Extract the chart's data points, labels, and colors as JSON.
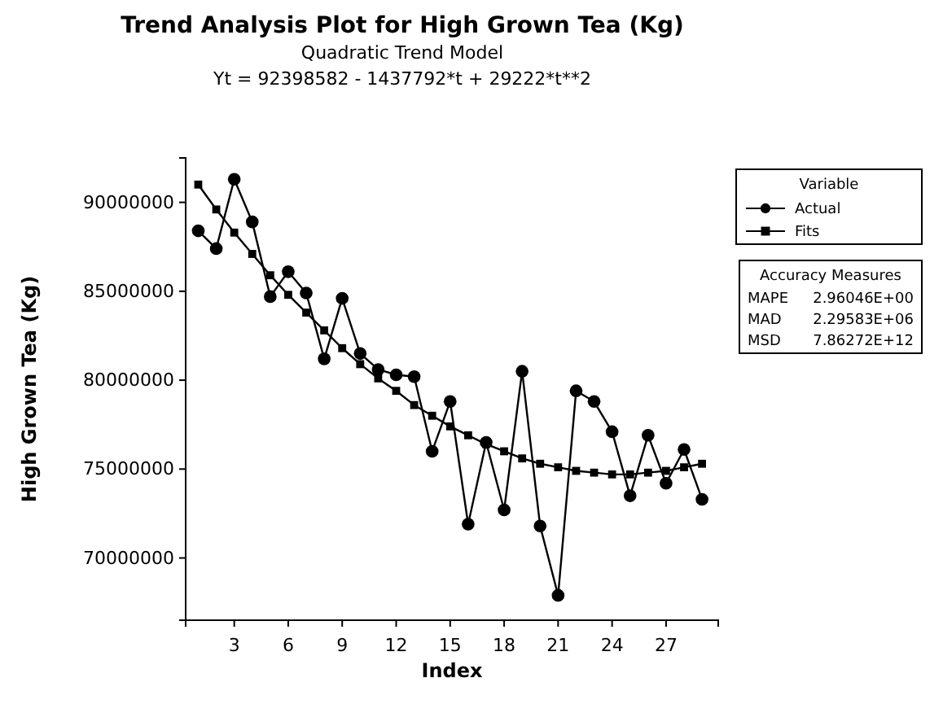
{
  "chart_data": {
    "type": "line",
    "title": "Trend Analysis Plot for High Grown Tea (Kg)",
    "subtitle": "Quadratic Trend Model",
    "xlabel": "Index",
    "ylabel": "High Grown Tea (Kg)",
    "legend_title": "Variable",
    "legend": "right",
    "annotations": [
      "Yt = 92398582 - 1437792*t + 29222*t**2",
      "Accuracy Measures",
      "MAPE",
      "2.96046E+00",
      "MAD",
      "2.29583E+06",
      "MSD",
      "7.86272E+12"
    ],
    "x": [
      1,
      2,
      3,
      4,
      5,
      6,
      7,
      8,
      9,
      10,
      11,
      12,
      13,
      14,
      15,
      16,
      17,
      18,
      19,
      20,
      21,
      22,
      23,
      24,
      25,
      26,
      27,
      28,
      29
    ],
    "xlim": [
      0.3,
      29.9
    ],
    "xticks": [
      3,
      6,
      9,
      12,
      15,
      18,
      21,
      24,
      27
    ],
    "ylim": [
      66500000,
      92500000
    ],
    "yticks": [
      70000000,
      75000000,
      80000000,
      85000000,
      90000000
    ],
    "series": [
      {
        "name": "Actual",
        "color": "#000000",
        "marker": "circle",
        "values": [
          88400000,
          87400000,
          91300000,
          88900000,
          84700000,
          86100000,
          84900000,
          81200000,
          84600000,
          81500000,
          80600000,
          80300000,
          80200000,
          76000000,
          78800000,
          71900000,
          76500000,
          72700000,
          80500000,
          71800000,
          67900000,
          79400000,
          78800000,
          77100000,
          73500000,
          76900000,
          74200000,
          76100000,
          73300000
        ]
      },
      {
        "name": "Fits",
        "color": "#000000",
        "marker": "square",
        "values": [
          91000000,
          89600000,
          88300000,
          87100000,
          85900000,
          84800000,
          83800000,
          82800000,
          81800000,
          80900000,
          80100000,
          79400000,
          78600000,
          78000000,
          77400000,
          76900000,
          76400000,
          76000000,
          75600000,
          75300000,
          75100000,
          74900000,
          74800000,
          74700000,
          74700000,
          74800000,
          74900000,
          75100000,
          75300000
        ]
      }
    ]
  }
}
